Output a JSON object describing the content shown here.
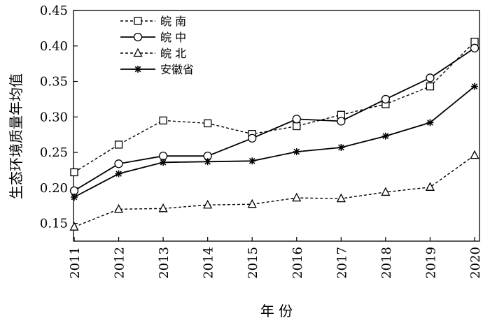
{
  "chart_data": {
    "type": "line",
    "title": "",
    "xlabel": "年 份",
    "ylabel": "生态环境质量年均值",
    "categories": [
      "2011",
      "2012",
      "2013",
      "2014",
      "2015",
      "2016",
      "2017",
      "2018",
      "2019",
      "2020"
    ],
    "ylim": [
      0.125,
      0.45
    ],
    "yticks": [
      "0.15",
      "0.20",
      "0.25",
      "0.30",
      "0.35",
      "0.40",
      "0.45"
    ],
    "grid": false,
    "legend_position": "top-left",
    "series": [
      {
        "name": "皖 南",
        "line": "dashed",
        "marker": "square",
        "values": [
          0.222,
          0.261,
          0.295,
          0.291,
          0.276,
          0.287,
          0.303,
          0.318,
          0.343,
          0.406
        ]
      },
      {
        "name": "皖 中",
        "line": "solid",
        "marker": "circle",
        "values": [
          0.196,
          0.234,
          0.245,
          0.245,
          0.27,
          0.297,
          0.294,
          0.325,
          0.355,
          0.397
        ]
      },
      {
        "name": "皖 北",
        "line": "dashed",
        "marker": "triangle",
        "values": [
          0.145,
          0.17,
          0.171,
          0.176,
          0.177,
          0.186,
          0.185,
          0.194,
          0.201,
          0.246
        ]
      },
      {
        "name": "安徽省",
        "line": "solid",
        "marker": "asterisk",
        "values": [
          0.187,
          0.22,
          0.236,
          0.237,
          0.238,
          0.251,
          0.257,
          0.273,
          0.292,
          0.343
        ]
      }
    ]
  }
}
